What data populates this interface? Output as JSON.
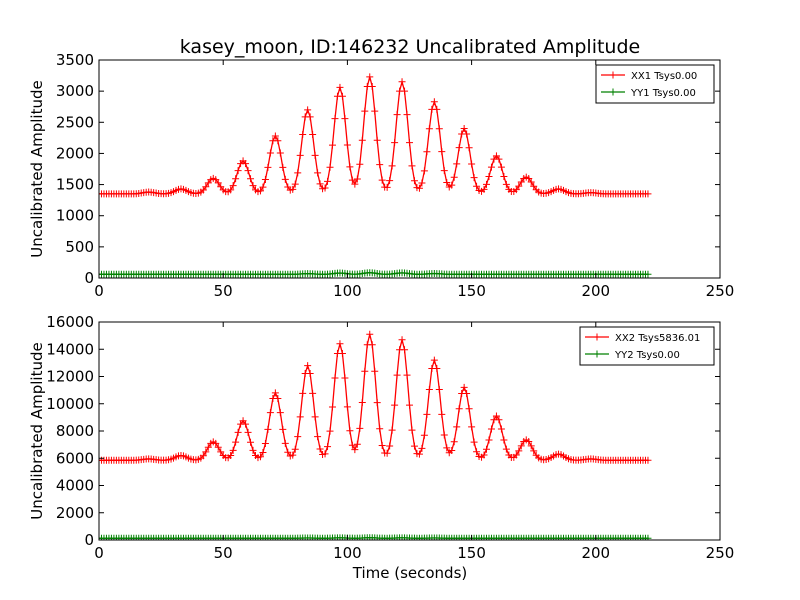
{
  "title": "kasey_moon, ID:146232 Uncalibrated Amplitude",
  "xlabel": "Time (seconds)",
  "chart_data": [
    {
      "type": "line",
      "title": "kasey_moon, ID:146232 Uncalibrated Amplitude",
      "xlabel": "",
      "ylabel": "Uncalibrated Amplitude",
      "xlim": [
        0,
        250
      ],
      "ylim": [
        0,
        3500
      ],
      "xticks": [
        0,
        50,
        100,
        150,
        200,
        250
      ],
      "yticks": [
        0,
        500,
        1000,
        1500,
        2000,
        2500,
        3000,
        3500
      ],
      "legend_position": "top-right",
      "series": [
        {
          "name": "XX1 Tsys0.00",
          "color": "#ff0000",
          "marker": "plus",
          "x_range": [
            0,
            221
          ],
          "baseline": 1350,
          "peaks": [
            {
              "x": 20,
              "height": 1380
            },
            {
              "x": 33,
              "height": 1430
            },
            {
              "x": 46,
              "height": 1600
            },
            {
              "x": 58,
              "height": 1880
            },
            {
              "x": 71,
              "height": 2280
            },
            {
              "x": 84,
              "height": 2700
            },
            {
              "x": 97,
              "height": 3060
            },
            {
              "x": 109,
              "height": 3230
            },
            {
              "x": 122,
              "height": 3150
            },
            {
              "x": 135,
              "height": 2830
            },
            {
              "x": 147,
              "height": 2400
            },
            {
              "x": 160,
              "height": 1960
            },
            {
              "x": 172,
              "height": 1620
            },
            {
              "x": 185,
              "height": 1430
            },
            {
              "x": 198,
              "height": 1370
            }
          ]
        },
        {
          "name": "YY1 Tsys0.00",
          "color": "#008000",
          "marker": "plus",
          "x_range": [
            0,
            221
          ],
          "baseline": 60,
          "peaks": [
            {
              "x": 84,
              "height": 70
            },
            {
              "x": 97,
              "height": 80
            },
            {
              "x": 109,
              "height": 85
            },
            {
              "x": 122,
              "height": 82
            },
            {
              "x": 135,
              "height": 72
            }
          ]
        }
      ]
    },
    {
      "type": "line",
      "title": "",
      "xlabel": "Time (seconds)",
      "ylabel": "Uncalibrated Amplitude",
      "xlim": [
        0,
        250
      ],
      "ylim": [
        0,
        16000
      ],
      "xticks": [
        0,
        50,
        100,
        150,
        200,
        250
      ],
      "yticks": [
        0,
        2000,
        4000,
        6000,
        8000,
        10000,
        12000,
        14000,
        16000
      ],
      "legend_position": "top-right",
      "series": [
        {
          "name": "XX2 Tsys5836.01",
          "color": "#ff0000",
          "marker": "plus",
          "x_range": [
            0,
            221
          ],
          "baseline": 5850,
          "peaks": [
            {
              "x": 20,
              "height": 5950
            },
            {
              "x": 33,
              "height": 6200
            },
            {
              "x": 46,
              "height": 7200
            },
            {
              "x": 58,
              "height": 8750
            },
            {
              "x": 71,
              "height": 10800
            },
            {
              "x": 84,
              "height": 12800
            },
            {
              "x": 97,
              "height": 14400
            },
            {
              "x": 109,
              "height": 15100
            },
            {
              "x": 122,
              "height": 14700
            },
            {
              "x": 135,
              "height": 13200
            },
            {
              "x": 147,
              "height": 11200
            },
            {
              "x": 160,
              "height": 9100
            },
            {
              "x": 172,
              "height": 7350
            },
            {
              "x": 185,
              "height": 6300
            },
            {
              "x": 198,
              "height": 5950
            }
          ]
        },
        {
          "name": "YY2 Tsys0.00",
          "color": "#008000",
          "marker": "plus",
          "x_range": [
            0,
            221
          ],
          "baseline": 130,
          "peaks": [
            {
              "x": 84,
              "height": 150
            },
            {
              "x": 97,
              "height": 160
            },
            {
              "x": 109,
              "height": 165
            },
            {
              "x": 122,
              "height": 160
            },
            {
              "x": 135,
              "height": 150
            }
          ]
        }
      ]
    }
  ]
}
